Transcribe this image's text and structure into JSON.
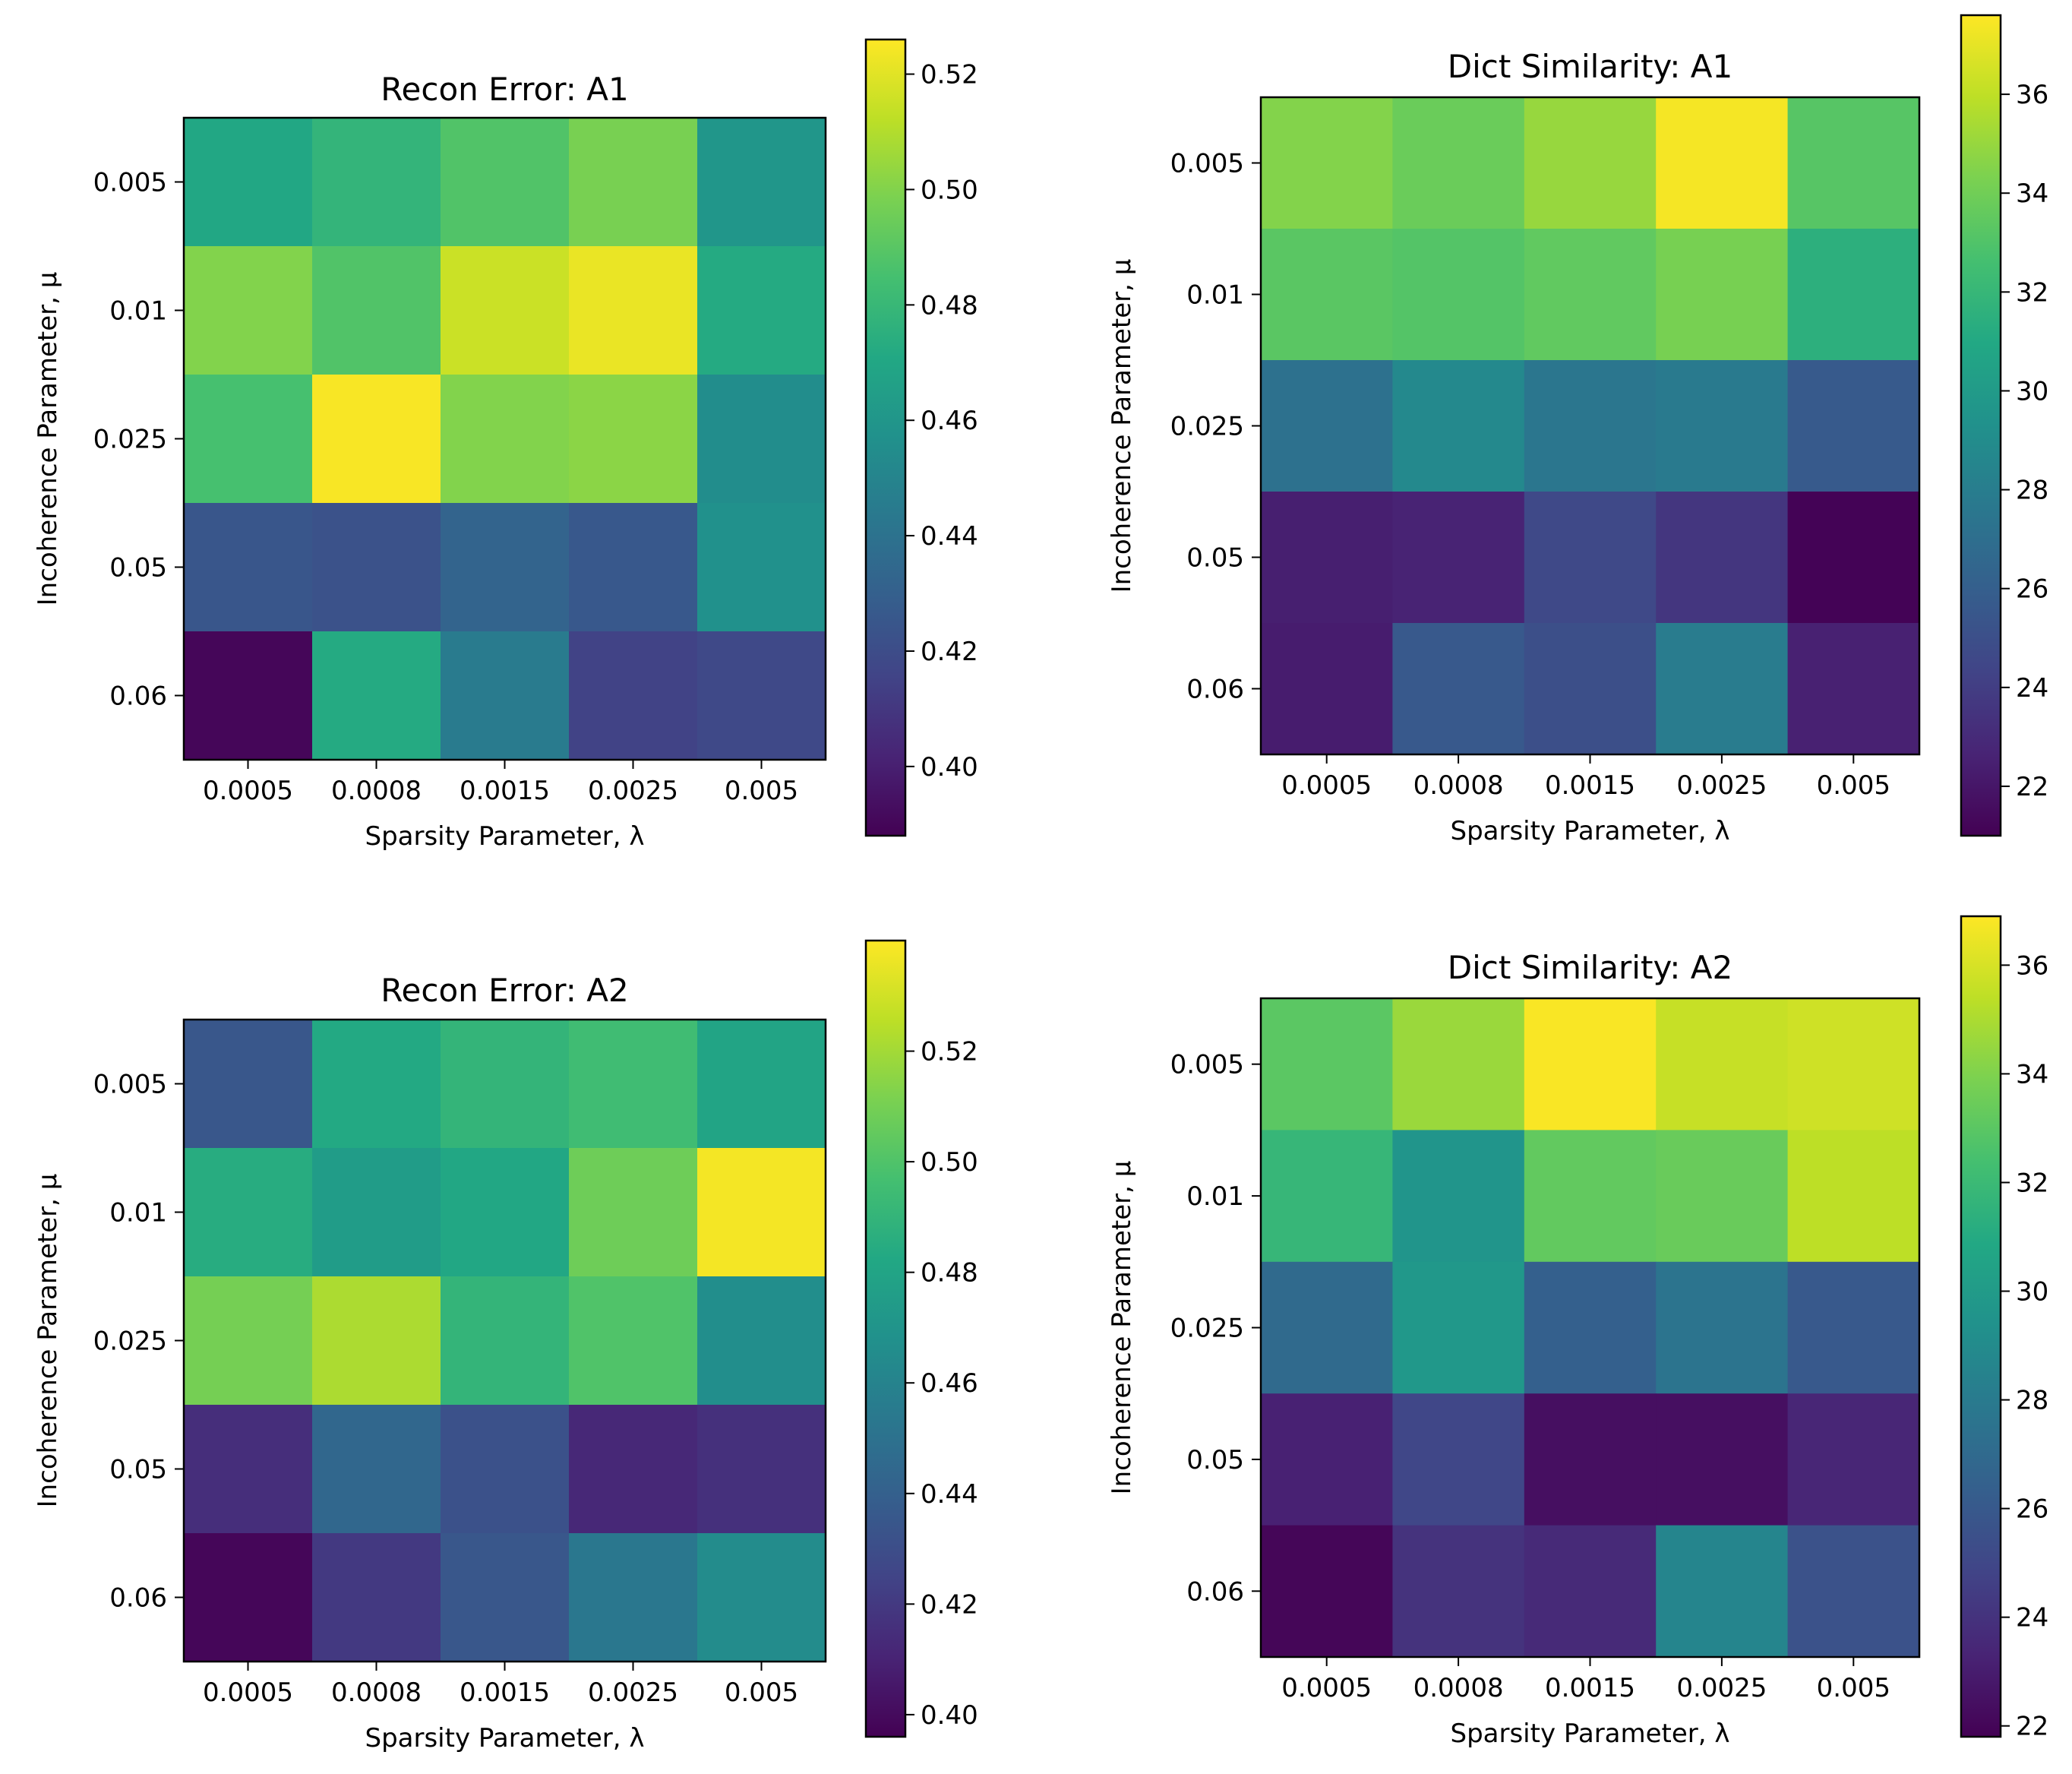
{
  "chart_data": [
    {
      "type": "heatmap",
      "title": "Recon Error: A1",
      "xlabel": "Sparsity Parameter, λ",
      "ylabel": "Incoherence Parameter, μ",
      "x_categories": [
        "0.0005",
        "0.0008",
        "0.0015",
        "0.0025",
        "0.005"
      ],
      "y_categories": [
        "0.005",
        "0.01",
        "0.025",
        "0.05",
        "0.06"
      ],
      "values": [
        [
          0.47,
          0.478,
          0.488,
          0.498,
          0.46
        ],
        [
          0.5,
          0.488,
          0.515,
          0.522,
          0.472
        ],
        [
          0.485,
          0.525,
          0.5,
          0.502,
          0.455
        ],
        [
          0.425,
          0.423,
          0.432,
          0.426,
          0.457
        ],
        [
          0.39,
          0.472,
          0.445,
          0.415,
          0.418
        ]
      ],
      "colorbar": {
        "min": 0.388,
        "max": 0.526,
        "ticks": [
          "0.40",
          "0.42",
          "0.44",
          "0.46",
          "0.48",
          "0.50",
          "0.52"
        ],
        "tick_values": [
          0.4,
          0.42,
          0.44,
          0.46,
          0.48,
          0.5,
          0.52
        ]
      },
      "colormap": "viridis"
    },
    {
      "type": "heatmap",
      "title": "Dict Similarity: A1",
      "xlabel": "Sparsity Parameter, λ",
      "ylabel": "Incoherence Parameter, μ",
      "x_categories": [
        "0.0005",
        "0.0008",
        "0.0015",
        "0.0025",
        "0.005"
      ],
      "y_categories": [
        "0.005",
        "0.01",
        "0.025",
        "0.05",
        "0.06"
      ],
      "values": [
        [
          34.5,
          33.8,
          35.0,
          37.4,
          33.2
        ],
        [
          33.3,
          33.1,
          33.5,
          34.2,
          31.5
        ],
        [
          27.2,
          28.8,
          27.5,
          27.8,
          25.7
        ],
        [
          22.4,
          22.6,
          24.6,
          23.6,
          21.1
        ],
        [
          22.3,
          25.6,
          25.0,
          27.9,
          22.5
        ]
      ],
      "colorbar": {
        "min": 21.0,
        "max": 37.6,
        "ticks": [
          "22",
          "24",
          "26",
          "28",
          "30",
          "32",
          "34",
          "36"
        ],
        "tick_values": [
          22,
          24,
          26,
          28,
          30,
          32,
          34,
          36
        ]
      },
      "colormap": "viridis"
    },
    {
      "type": "heatmap",
      "title": "Recon Error: A2",
      "xlabel": "Sparsity Parameter, λ",
      "ylabel": "Incoherence Parameter, μ",
      "x_categories": [
        "0.0005",
        "0.0008",
        "0.0015",
        "0.0025",
        "0.005"
      ],
      "y_categories": [
        "0.005",
        "0.01",
        "0.025",
        "0.05",
        "0.06"
      ],
      "values": [
        [
          0.435,
          0.483,
          0.49,
          0.495,
          0.48
        ],
        [
          0.485,
          0.475,
          0.482,
          0.508,
          0.538
        ],
        [
          0.51,
          0.522,
          0.49,
          0.5,
          0.466
        ],
        [
          0.415,
          0.444,
          0.432,
          0.412,
          0.416
        ],
        [
          0.398,
          0.42,
          0.435,
          0.453,
          0.465
        ]
      ],
      "colorbar": {
        "min": 0.396,
        "max": 0.54,
        "ticks": [
          "0.40",
          "0.42",
          "0.44",
          "0.46",
          "0.48",
          "0.50",
          "0.52"
        ],
        "tick_values": [
          0.4,
          0.42,
          0.44,
          0.46,
          0.48,
          0.5,
          0.52
        ]
      },
      "colormap": "viridis"
    },
    {
      "type": "heatmap",
      "title": "Dict Similarity: A2",
      "xlabel": "Sparsity Parameter, λ",
      "ylabel": "Incoherence Parameter, μ",
      "x_categories": [
        "0.0005",
        "0.0008",
        "0.0015",
        "0.0025",
        "0.005"
      ],
      "y_categories": [
        "0.005",
        "0.01",
        "0.025",
        "0.05",
        "0.06"
      ],
      "values": [
        [
          33.0,
          34.6,
          36.8,
          35.6,
          35.8
        ],
        [
          31.8,
          29.6,
          33.2,
          33.4,
          35.4
        ],
        [
          27.0,
          29.8,
          26.4,
          27.6,
          26.0
        ],
        [
          23.2,
          25.0,
          22.4,
          22.4,
          23.4
        ],
        [
          22.0,
          24.0,
          23.6,
          28.6,
          25.6
        ]
      ],
      "colorbar": {
        "min": 21.8,
        "max": 36.9,
        "ticks": [
          "22",
          "24",
          "26",
          "28",
          "30",
          "32",
          "34",
          "36"
        ],
        "tick_values": [
          22,
          24,
          26,
          28,
          30,
          32,
          34,
          36
        ]
      },
      "colormap": "viridis"
    }
  ]
}
